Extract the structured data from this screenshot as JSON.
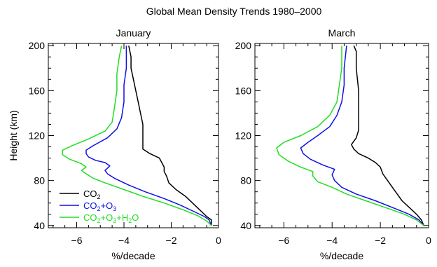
{
  "title": "Global Mean Density Trends 1980–2000",
  "chart_data": [
    {
      "type": "line",
      "title": "January",
      "xlabel": "%/decade",
      "ylabel": "Height (km)",
      "xlim": [
        -7.2,
        0
      ],
      "ylim": [
        38,
        202
      ],
      "x_ticks": [
        -6,
        -4,
        -2,
        0
      ],
      "y_ticks": [
        40,
        80,
        120,
        160,
        200
      ],
      "legend_position": "bottom-left",
      "series": [
        {
          "name": "CO2",
          "label_base": "CO",
          "label_sub": "2",
          "color": "#000000",
          "points": [
            [
              -0.3,
              40
            ],
            [
              -0.3,
              45
            ],
            [
              -0.5,
              48
            ],
            [
              -0.7,
              52
            ],
            [
              -0.9,
              56
            ],
            [
              -1.1,
              60
            ],
            [
              -1.4,
              66
            ],
            [
              -1.8,
              72
            ],
            [
              -2.1,
              78
            ],
            [
              -2.2,
              84
            ],
            [
              -2.3,
              88
            ],
            [
              -2.3,
              92
            ],
            [
              -2.4,
              96
            ],
            [
              -2.5,
              100
            ],
            [
              -2.9,
              104
            ],
            [
              -3.2,
              108
            ],
            [
              -3.2,
              112
            ],
            [
              -3.2,
              120
            ],
            [
              -3.2,
              130
            ],
            [
              -3.3,
              140
            ],
            [
              -3.4,
              150
            ],
            [
              -3.5,
              160
            ],
            [
              -3.6,
              170
            ],
            [
              -3.7,
              180
            ],
            [
              -3.7,
              190
            ],
            [
              -3.8,
              200
            ]
          ]
        },
        {
          "name": "CO2+O3",
          "label_parts": [
            "CO",
            "2",
            "+O",
            "3",
            ""
          ],
          "color": "#1010e6",
          "points": [
            [
              -0.3,
              40
            ],
            [
              -0.4,
              45
            ],
            [
              -0.6,
              48
            ],
            [
              -1.0,
              52
            ],
            [
              -1.6,
              58
            ],
            [
              -2.3,
              64
            ],
            [
              -3.1,
              70
            ],
            [
              -3.8,
              76
            ],
            [
              -4.4,
              82
            ],
            [
              -4.7,
              86
            ],
            [
              -4.8,
              89
            ],
            [
              -4.6,
              93
            ],
            [
              -4.8,
              96
            ],
            [
              -5.2,
              98
            ],
            [
              -5.5,
              101
            ],
            [
              -5.6,
              104
            ],
            [
              -5.6,
              107
            ],
            [
              -5.3,
              111
            ],
            [
              -4.7,
              118
            ],
            [
              -4.3,
              126
            ],
            [
              -4.1,
              136
            ],
            [
              -4.0,
              150
            ],
            [
              -4.0,
              165
            ],
            [
              -3.9,
              180
            ],
            [
              -3.9,
              200
            ]
          ]
        },
        {
          "name": "CO2+O3+H2O",
          "label_parts": [
            "CO",
            "2",
            "+O",
            "3",
            "+H",
            "2",
            "O"
          ],
          "color": "#22dd22",
          "points": [
            [
              -0.3,
              40
            ],
            [
              -0.5,
              44
            ],
            [
              -0.9,
              49
            ],
            [
              -1.5,
              54
            ],
            [
              -2.3,
              60
            ],
            [
              -3.2,
              66
            ],
            [
              -4.0,
              72
            ],
            [
              -4.8,
              78
            ],
            [
              -5.3,
              82
            ],
            [
              -5.6,
              86
            ],
            [
              -5.8,
              89
            ],
            [
              -5.6,
              92
            ],
            [
              -5.8,
              95
            ],
            [
              -6.3,
              99
            ],
            [
              -6.6,
              103
            ],
            [
              -6.6,
              107
            ],
            [
              -6.2,
              111
            ],
            [
              -5.5,
              117
            ],
            [
              -4.8,
              124
            ],
            [
              -4.5,
              132
            ],
            [
              -4.4,
              145
            ],
            [
              -4.3,
              160
            ],
            [
              -4.3,
              175
            ],
            [
              -4.2,
              190
            ],
            [
              -4.1,
              200
            ]
          ]
        }
      ]
    },
    {
      "type": "line",
      "title": "March",
      "xlabel": "%/decade",
      "ylabel": "",
      "xlim": [
        -7.2,
        0
      ],
      "ylim": [
        38,
        202
      ],
      "x_ticks": [
        -6,
        -4,
        -2,
        0
      ],
      "y_ticks": [
        40,
        80,
        120,
        160,
        200
      ],
      "series": [
        {
          "name": "CO2",
          "color": "#000000",
          "points": [
            [
              -0.2,
              40
            ],
            [
              -0.3,
              45
            ],
            [
              -0.5,
              50
            ],
            [
              -0.8,
              56
            ],
            [
              -1.1,
              62
            ],
            [
              -1.3,
              68
            ],
            [
              -1.5,
              74
            ],
            [
              -1.7,
              80
            ],
            [
              -1.9,
              86
            ],
            [
              -2.0,
              92
            ],
            [
              -2.2,
              96
            ],
            [
              -2.5,
              100
            ],
            [
              -2.9,
              104
            ],
            [
              -3.1,
              108
            ],
            [
              -3.2,
              112
            ],
            [
              -3.0,
              118
            ],
            [
              -2.9,
              125
            ],
            [
              -2.9,
              140
            ],
            [
              -2.9,
              160
            ],
            [
              -3.0,
              180
            ],
            [
              -3.0,
              195
            ],
            [
              -3.1,
              200
            ]
          ]
        },
        {
          "name": "CO2+O3",
          "color": "#1010e6",
          "points": [
            [
              -0.2,
              40
            ],
            [
              -0.4,
              45
            ],
            [
              -0.8,
              50
            ],
            [
              -1.5,
              56
            ],
            [
              -2.2,
              62
            ],
            [
              -3.0,
              68
            ],
            [
              -3.6,
              74
            ],
            [
              -3.9,
              80
            ],
            [
              -4.0,
              85
            ],
            [
              -3.9,
              90
            ],
            [
              -4.4,
              94
            ],
            [
              -4.9,
              99
            ],
            [
              -5.2,
              104
            ],
            [
              -5.3,
              109
            ],
            [
              -5.0,
              114
            ],
            [
              -4.6,
              120
            ],
            [
              -4.1,
              128
            ],
            [
              -3.8,
              138
            ],
            [
              -3.6,
              150
            ],
            [
              -3.5,
              165
            ],
            [
              -3.5,
              180
            ],
            [
              -3.4,
              200
            ]
          ]
        },
        {
          "name": "CO2+O3+H2O",
          "color": "#22dd22",
          "points": [
            [
              -0.2,
              40
            ],
            [
              -0.5,
              45
            ],
            [
              -1.0,
              50
            ],
            [
              -1.8,
              56
            ],
            [
              -2.6,
              62
            ],
            [
              -3.4,
              68
            ],
            [
              -4.0,
              74
            ],
            [
              -4.6,
              79
            ],
            [
              -4.8,
              84
            ],
            [
              -4.8,
              88
            ],
            [
              -5.3,
              92
            ],
            [
              -5.8,
              97
            ],
            [
              -6.2,
              103
            ],
            [
              -6.3,
              109
            ],
            [
              -6.0,
              114
            ],
            [
              -5.3,
              120
            ],
            [
              -4.6,
              128
            ],
            [
              -4.1,
              138
            ],
            [
              -3.8,
              150
            ],
            [
              -3.7,
              165
            ],
            [
              -3.6,
              180
            ],
            [
              -3.6,
              200
            ]
          ]
        }
      ]
    }
  ]
}
